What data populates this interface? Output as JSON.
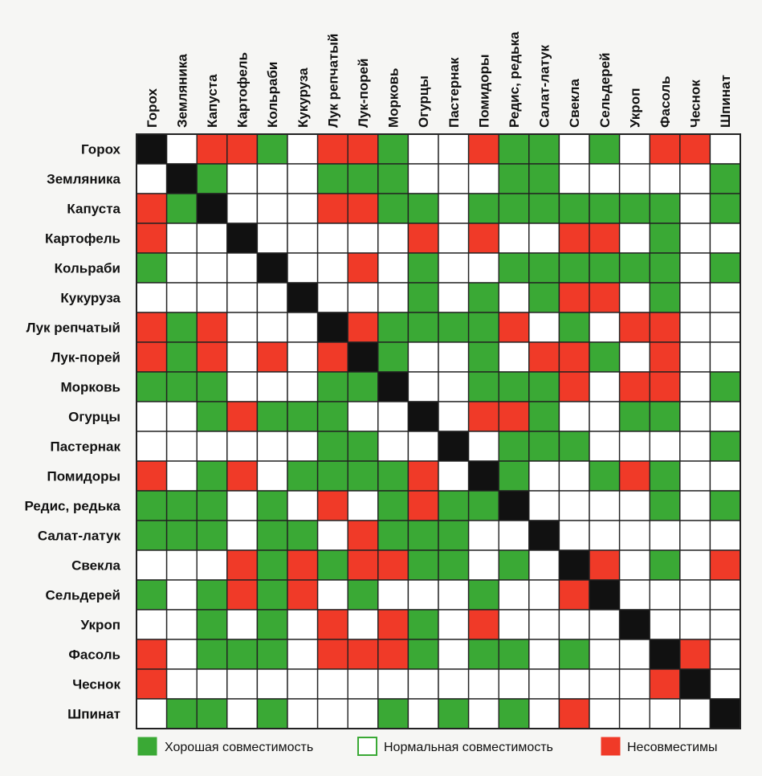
{
  "chart_data": {
    "type": "heatmap",
    "title": "",
    "categories": [
      "Горох",
      "Земляника",
      "Капуста",
      "Картофель",
      "Кольраби",
      "Кукуруза",
      "Лук репчатый",
      "Лук-порей",
      "Морковь",
      "Огурцы",
      "Пастернак",
      "Помидоры",
      "Редис, редька",
      "Салат-латук",
      "Свекла",
      "Сельдерей",
      "Укроп",
      "Фасоль",
      "Чеснок",
      "Шпинат"
    ],
    "value_meaning": {
      "G": "Хорошая совместимость",
      "W": "Нормальная совместимость",
      "R": "Несовместимы",
      "B": "diagonal"
    },
    "matrix": [
      [
        "B",
        "W",
        "R",
        "R",
        "G",
        "W",
        "R",
        "R",
        "G",
        "W",
        "W",
        "R",
        "G",
        "G",
        "W",
        "G",
        "W",
        "R",
        "R",
        "W"
      ],
      [
        "W",
        "B",
        "G",
        "W",
        "W",
        "W",
        "G",
        "G",
        "G",
        "W",
        "W",
        "W",
        "G",
        "G",
        "W",
        "W",
        "W",
        "W",
        "W",
        "G"
      ],
      [
        "R",
        "G",
        "B",
        "W",
        "W",
        "W",
        "R",
        "R",
        "G",
        "G",
        "W",
        "G",
        "G",
        "G",
        "G",
        "G",
        "G",
        "G",
        "W",
        "G"
      ],
      [
        "R",
        "W",
        "W",
        "B",
        "W",
        "W",
        "W",
        "W",
        "W",
        "R",
        "W",
        "R",
        "W",
        "W",
        "R",
        "R",
        "W",
        "G",
        "W",
        "W"
      ],
      [
        "G",
        "W",
        "W",
        "W",
        "B",
        "W",
        "W",
        "R",
        "W",
        "G",
        "W",
        "W",
        "G",
        "G",
        "G",
        "G",
        "G",
        "G",
        "W",
        "G"
      ],
      [
        "W",
        "W",
        "W",
        "W",
        "W",
        "B",
        "W",
        "W",
        "W",
        "G",
        "W",
        "G",
        "W",
        "G",
        "R",
        "R",
        "W",
        "G",
        "W",
        "W"
      ],
      [
        "R",
        "G",
        "R",
        "W",
        "W",
        "W",
        "B",
        "R",
        "G",
        "G",
        "G",
        "G",
        "R",
        "W",
        "G",
        "W",
        "R",
        "R",
        "W",
        "W"
      ],
      [
        "R",
        "G",
        "R",
        "W",
        "R",
        "W",
        "R",
        "B",
        "G",
        "W",
        "W",
        "G",
        "W",
        "R",
        "R",
        "G",
        "W",
        "R",
        "W",
        "W"
      ],
      [
        "G",
        "G",
        "G",
        "W",
        "W",
        "W",
        "G",
        "G",
        "B",
        "W",
        "W",
        "G",
        "G",
        "G",
        "R",
        "W",
        "R",
        "R",
        "W",
        "G"
      ],
      [
        "W",
        "W",
        "G",
        "R",
        "G",
        "G",
        "G",
        "W",
        "W",
        "B",
        "W",
        "R",
        "R",
        "G",
        "W",
        "W",
        "G",
        "G",
        "W",
        "W"
      ],
      [
        "W",
        "W",
        "W",
        "W",
        "W",
        "W",
        "G",
        "G",
        "W",
        "W",
        "B",
        "W",
        "G",
        "G",
        "G",
        "W",
        "W",
        "W",
        "W",
        "G"
      ],
      [
        "R",
        "W",
        "G",
        "R",
        "W",
        "G",
        "G",
        "G",
        "G",
        "R",
        "W",
        "B",
        "G",
        "W",
        "W",
        "G",
        "R",
        "G",
        "W",
        "W"
      ],
      [
        "G",
        "G",
        "G",
        "W",
        "G",
        "W",
        "R",
        "W",
        "G",
        "R",
        "G",
        "G",
        "B",
        "W",
        "W",
        "W",
        "W",
        "G",
        "W",
        "G"
      ],
      [
        "G",
        "G",
        "G",
        "W",
        "G",
        "G",
        "W",
        "R",
        "G",
        "G",
        "G",
        "W",
        "W",
        "B",
        "W",
        "W",
        "W",
        "W",
        "W",
        "W"
      ],
      [
        "W",
        "W",
        "W",
        "R",
        "G",
        "R",
        "G",
        "R",
        "R",
        "G",
        "G",
        "W",
        "G",
        "W",
        "B",
        "R",
        "W",
        "G",
        "W",
        "R"
      ],
      [
        "G",
        "W",
        "G",
        "R",
        "G",
        "R",
        "W",
        "G",
        "W",
        "W",
        "W",
        "G",
        "W",
        "W",
        "R",
        "B",
        "W",
        "W",
        "W",
        "W"
      ],
      [
        "W",
        "W",
        "G",
        "W",
        "G",
        "W",
        "R",
        "W",
        "R",
        "G",
        "W",
        "R",
        "W",
        "W",
        "W",
        "W",
        "B",
        "W",
        "W",
        "W"
      ],
      [
        "R",
        "W",
        "G",
        "G",
        "G",
        "W",
        "R",
        "R",
        "R",
        "G",
        "W",
        "G",
        "G",
        "W",
        "G",
        "W",
        "W",
        "B",
        "R",
        "W"
      ],
      [
        "R",
        "W",
        "W",
        "W",
        "W",
        "W",
        "W",
        "W",
        "W",
        "W",
        "W",
        "W",
        "W",
        "W",
        "W",
        "W",
        "W",
        "R",
        "B",
        "W"
      ],
      [
        "W",
        "G",
        "G",
        "W",
        "G",
        "W",
        "W",
        "W",
        "G",
        "W",
        "G",
        "W",
        "G",
        "W",
        "R",
        "W",
        "W",
        "W",
        "W",
        "B"
      ]
    ],
    "legend": [
      {
        "key": "G",
        "label": "Хорошая совместимость"
      },
      {
        "key": "W",
        "label": "Нормальная совместимость"
      },
      {
        "key": "R",
        "label": "Несовместимы"
      }
    ],
    "legend_position": "bottom",
    "grid": true
  },
  "colors": {
    "G": "#3aa935",
    "W": "#ffffff",
    "R": "#f03a28",
    "B": "#111111",
    "grid": "#222222",
    "background": "#f6f6f4"
  }
}
